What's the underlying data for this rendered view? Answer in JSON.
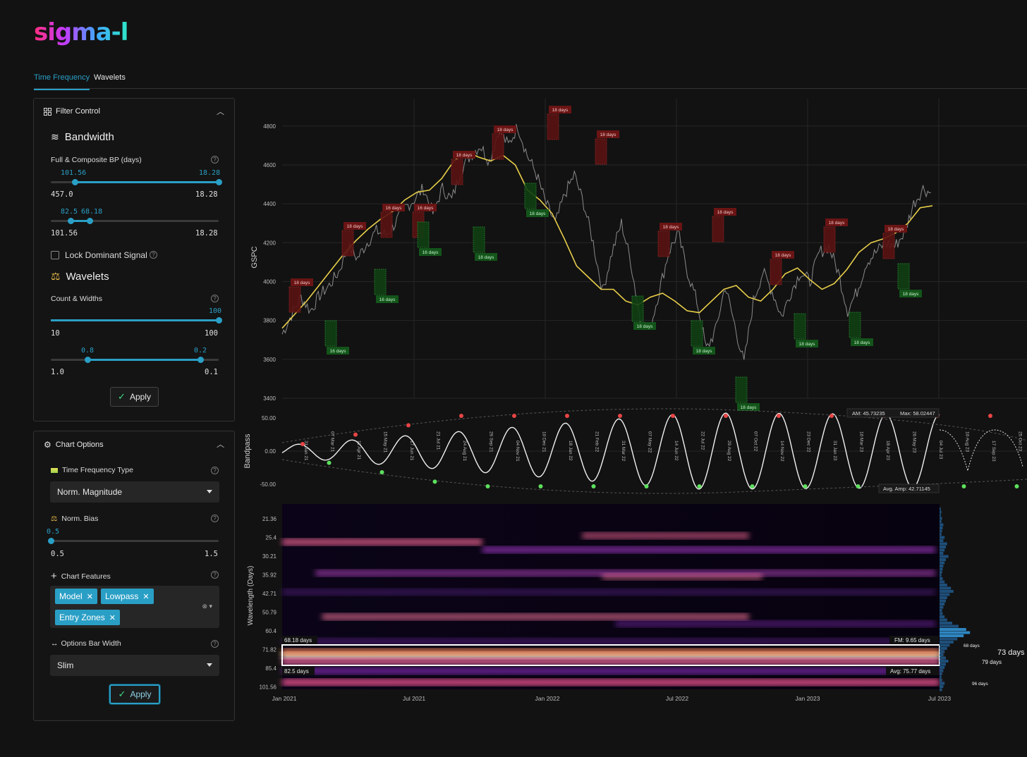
{
  "app": {
    "logo": "sigma-l"
  },
  "tabs": [
    {
      "label": "Time Frequency",
      "active": true
    },
    {
      "label": "Wavelets",
      "active": false
    }
  ],
  "filter_control": {
    "title": "Filter Control",
    "bandwidth": {
      "title": "Bandwidth",
      "full_composite_label": "Full & Composite BP (days)",
      "slider1": {
        "low_value": "101.56",
        "high_value": "18.28",
        "min": "457.0",
        "max": "18.28",
        "low_fraction": 0.15,
        "high_fraction": 1.0
      },
      "slider2": {
        "low_value": "82.5",
        "high_value": "68.18",
        "min": "101.56",
        "max": "18.28",
        "low_fraction": 0.12,
        "high_fraction": 0.23
      }
    },
    "lock_dominant_label": "Lock Dominant Signal",
    "wavelets": {
      "title": "Wavelets",
      "count_widths_label": "Count & Widths",
      "slider1": {
        "value": "100",
        "min": "10",
        "max": "100",
        "fraction": 1.0
      },
      "slider2": {
        "low_value": "0.8",
        "high_value": "0.2",
        "min": "1.0",
        "max": "0.1",
        "low_fraction": 0.23,
        "high_fraction": 0.9
      }
    },
    "apply_label": "Apply"
  },
  "chart_options": {
    "title": "Chart Options",
    "tf_type_label": "Time Frequency Type",
    "tf_type_value": "Norm. Magnitude",
    "norm_bias_label": "Norm. Bias",
    "norm_bias": {
      "value": "0.5",
      "min": "0.5",
      "max": "1.5",
      "fraction": 0.0
    },
    "chart_features_label": "Chart Features",
    "features": [
      "Model",
      "Lowpass",
      "Entry Zones"
    ],
    "options_bar_width_label": "Options Bar Width",
    "options_bar_width_value": "Slim",
    "apply_label": "Apply"
  },
  "chart_data": [
    {
      "type": "line",
      "ylabel": "GSPC",
      "y_ticks": [
        "4800",
        "4600",
        "4400",
        "4200",
        "4000",
        "3800",
        "3600",
        "3400"
      ],
      "ylim": [
        3400,
        4850
      ],
      "x_ticks": [
        "Jan 2021",
        "Jul 2021",
        "Jan 2022",
        "Jul 2022",
        "Jan 2023",
        "Jul 2023"
      ],
      "series": [
        {
          "values": [
            3730,
            3830,
            3920,
            3850,
            3930,
            3980,
            4050,
            4180,
            4120,
            4200,
            4260,
            4240,
            4300,
            4380,
            4420,
            4480,
            4350,
            4480,
            4420,
            4580,
            4650,
            4700,
            4620,
            4780,
            4700,
            4800,
            4650,
            4550,
            4400,
            4300,
            4450,
            4550,
            4400,
            4200,
            3950,
            4150,
            4300,
            4100,
            3800,
            3750,
            3950,
            4150,
            4250,
            4050,
            3900,
            3650,
            3750,
            3980,
            3780,
            3580,
            3900,
            4050,
            3950,
            3820,
            3950,
            4050,
            4000,
            4150,
            4180,
            4050,
            3850,
            3950,
            4100,
            4150,
            4200,
            4180,
            4250,
            4400,
            4480,
            4450
          ]
        },
        {
          "values": [
            3760,
            3830,
            3900,
            3980,
            4060,
            4140,
            4210,
            4270,
            4320,
            4360,
            4420,
            4460,
            4470,
            4530,
            4620,
            4670,
            4640,
            4620,
            4650,
            4600,
            4470,
            4420,
            4350,
            4220,
            4080,
            4020,
            3960,
            3960,
            3900,
            3880,
            3920,
            3940,
            3900,
            3850,
            3840,
            3900,
            3960,
            3980,
            3920,
            3900,
            3960,
            4040,
            4070,
            4010,
            3960,
            3990,
            4060,
            4150,
            4200,
            4220,
            4250,
            4300,
            4380,
            4390
          ]
        }
      ],
      "peak_labels": [
        "18 days",
        "18 days",
        "16 days",
        "16 days",
        "18 days",
        "18 days",
        "18 days",
        "18 days",
        "18 days",
        "18 days",
        "18 days",
        "18 days",
        "18 days",
        "18 days"
      ],
      "trough_labels": [
        "16 days",
        "16 days",
        "16 days",
        "18 days",
        "18 days",
        "18 days",
        "18 days",
        "18 days",
        "18 days",
        "18 days",
        "18 days",
        "18 days",
        "18 days",
        "18 days"
      ]
    },
    {
      "type": "line",
      "ylabel": "Bandpass",
      "y_ticks": [
        "50.00",
        "0.00",
        "-50.00"
      ],
      "am": "AM: 45.73235",
      "max": "Max: 58.02447",
      "avg_amp": "Avg. Amp: 42.71145",
      "date_labels": [
        "31 Jan 21",
        "07 Mar 21",
        "11 Apr 21",
        "15 May 21",
        "17 Jun 21",
        "21 Jul 21",
        "24 Aug 21",
        "29 Sep 21",
        "04 Nov 21",
        "10 Dec 21",
        "18 Jan 22",
        "21 Feb 22",
        "31 Mar 22",
        "07 May 22",
        "14 Jun 22",
        "22 Jul 22",
        "29 Aug 22",
        "07 Oct 22",
        "14 Nov 22",
        "23 Dec 22",
        "31 Jan 23",
        "10 Mar 23",
        "18 Apr 23",
        "26 May 23",
        "04 Jul 23",
        "10 Aug 23",
        "17 Sep 23",
        "25 Oct 23"
      ]
    },
    {
      "type": "heatmap",
      "ylabel": "Wavelength (Days)",
      "y_ticks": [
        "21.36",
        "25.4",
        "30.21",
        "35.92",
        "42.71",
        "50.79",
        "60.4",
        "71.82",
        "85.4",
        "101.56"
      ],
      "x_ticks": [
        "Jan 2021",
        "Jul 2021",
        "Jan 2022",
        "Jul 2022",
        "Jan 2023",
        "Jul 2023"
      ],
      "band_top_label": "68.18 days",
      "band_bottom_label": "82.5 days",
      "fm_label": "FM: 9.65 days",
      "avg_label": "Avg: 75.77 days",
      "side_labels": [
        "68 days",
        "73 days",
        "79 days",
        "96 days"
      ]
    }
  ]
}
